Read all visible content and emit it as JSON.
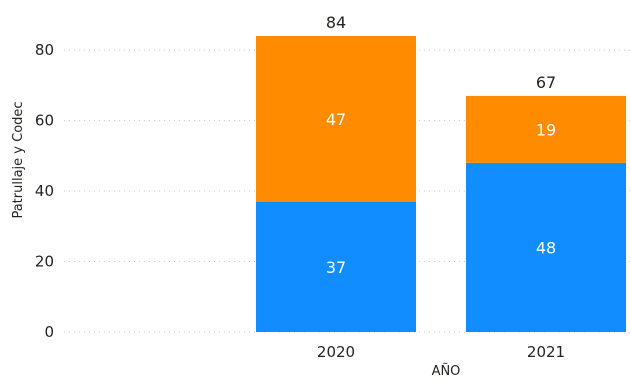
{
  "chart_data": {
    "type": "bar",
    "stacked": true,
    "categories": [
      "2020",
      "2021"
    ],
    "series": [
      {
        "values": [
          37,
          48
        ],
        "color": "#118DFF"
      },
      {
        "values": [
          47,
          19
        ],
        "color": "#FF8C00"
      }
    ],
    "totals": [
      84,
      67
    ],
    "xlabel": "AÑO",
    "ylabel": "Patrullaje y Codec",
    "ylim": [
      0,
      84
    ],
    "yticks": [
      "0",
      "20",
      "40",
      "60",
      "80"
    ],
    "grid": true,
    "legend": "none"
  }
}
